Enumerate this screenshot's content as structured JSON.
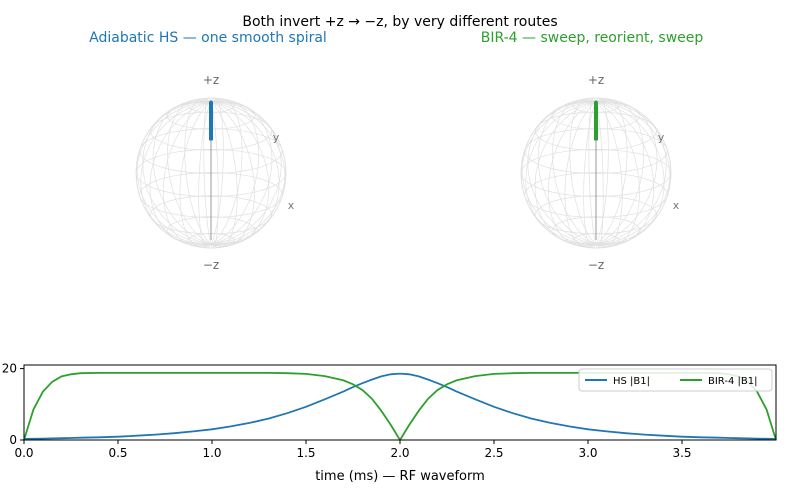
{
  "figure": {
    "suptitle": "Both invert +z → −z, by very different routes"
  },
  "chart_data": [
    {
      "type": "scatter",
      "panel": "bloch-sphere",
      "title": "Adiabatic HS — one smooth spiral",
      "title_color": "#1f77b4",
      "axis_labels": {
        "top": "+z",
        "bottom": "−z",
        "x": "x",
        "y": "y"
      },
      "trajectory_color": "#1f77b4",
      "trajectory_z": [
        1.0,
        0.5
      ],
      "grid": true
    },
    {
      "type": "scatter",
      "panel": "bloch-sphere",
      "title": "BIR-4 — sweep, reorient, sweep",
      "title_color": "#2ca02c",
      "axis_labels": {
        "top": "+z",
        "bottom": "−z",
        "x": "x",
        "y": "y"
      },
      "trajectory_color": "#2ca02c",
      "trajectory_z": [
        1.0,
        0.5
      ],
      "grid": true
    },
    {
      "type": "line",
      "title": "",
      "xlabel": "time (ms) — RF waveform",
      "ylabel": "",
      "xlim": [
        0,
        4.0
      ],
      "ylim": [
        0,
        21
      ],
      "xticks": [
        "0.0",
        "0.5",
        "1.0",
        "1.5",
        "2.0",
        "2.5",
        "3.0",
        "3.5"
      ],
      "yticks": [
        "0",
        "20"
      ],
      "legend_position": "upper-right",
      "x": [
        0.0,
        0.05,
        0.1,
        0.15,
        0.2,
        0.25,
        0.3,
        0.4,
        0.5,
        0.6,
        0.7,
        0.8,
        0.9,
        1.0,
        1.1,
        1.2,
        1.3,
        1.4,
        1.5,
        1.6,
        1.7,
        1.75,
        1.8,
        1.85,
        1.9,
        1.95,
        2.0,
        2.05,
        2.1,
        2.15,
        2.2,
        2.25,
        2.3,
        2.4,
        2.5,
        2.6,
        2.7,
        2.8,
        2.9,
        3.0,
        3.1,
        3.2,
        3.3,
        3.4,
        3.5,
        3.6,
        3.7,
        3.75,
        3.8,
        3.85,
        3.9,
        3.95,
        4.0
      ],
      "series": [
        {
          "name": "HS |B1|",
          "color": "#1f77b4",
          "values": [
            0.3,
            0.34,
            0.4,
            0.45,
            0.5,
            0.57,
            0.64,
            0.77,
            0.93,
            1.2,
            1.5,
            1.9,
            2.4,
            3.0,
            3.8,
            4.8,
            6.0,
            7.5,
            9.3,
            11.4,
            13.6,
            14.8,
            15.9,
            16.9,
            17.8,
            18.4,
            18.6,
            18.4,
            17.8,
            16.9,
            15.9,
            14.8,
            13.6,
            11.4,
            9.3,
            7.5,
            6.0,
            4.8,
            3.8,
            3.0,
            2.4,
            1.9,
            1.5,
            1.2,
            0.93,
            0.77,
            0.64,
            0.57,
            0.5,
            0.45,
            0.4,
            0.34,
            0.3
          ]
        },
        {
          "name": "BIR-4 |B1|",
          "color": "#2ca02c",
          "values": [
            0.0,
            8.5,
            13.5,
            16.3,
            17.8,
            18.4,
            18.7,
            18.8,
            18.8,
            18.8,
            18.8,
            18.8,
            18.8,
            18.8,
            18.8,
            18.8,
            18.8,
            18.7,
            18.5,
            17.9,
            16.7,
            15.6,
            14.0,
            11.6,
            8.2,
            4.3,
            0.0,
            4.3,
            8.2,
            11.6,
            14.0,
            15.6,
            16.7,
            17.9,
            18.5,
            18.7,
            18.8,
            18.8,
            18.8,
            18.8,
            18.8,
            18.8,
            18.8,
            18.8,
            18.8,
            18.8,
            18.7,
            18.4,
            17.8,
            16.3,
            13.5,
            8.5,
            0.0
          ]
        }
      ]
    }
  ]
}
